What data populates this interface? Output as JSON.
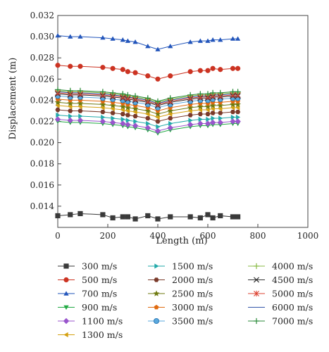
{
  "chart_data": {
    "type": "line",
    "xlabel": "Length (m)",
    "ylabel": "Displacement (m)",
    "xlim": [
      0,
      1000
    ],
    "ylim": [
      0.012,
      0.032
    ],
    "x_ticks": [
      "0",
      "200",
      "400",
      "600",
      "800",
      "1000"
    ],
    "y_ticks": [
      "0.014",
      "0.016",
      "0.018",
      "0.020",
      "0.022",
      "0.024",
      "0.026",
      "0.028",
      "0.030",
      "0.032"
    ],
    "grid": false,
    "legend_placement": "bottom",
    "x": [
      0,
      50,
      90,
      180,
      220,
      260,
      280,
      310,
      360,
      400,
      450,
      530,
      570,
      600,
      620,
      650,
      700,
      720
    ],
    "series": [
      {
        "name": "300 m/s",
        "marker": "square",
        "color": "#3a3a3a",
        "values": [
          0.0131,
          0.0132,
          0.0133,
          0.0132,
          0.0129,
          0.013,
          0.013,
          0.0128,
          0.0131,
          0.0128,
          0.013,
          0.013,
          0.0129,
          0.0132,
          0.0129,
          0.0131,
          0.013,
          0.013
        ]
      },
      {
        "name": "500 m/s",
        "marker": "circle",
        "color": "#cc3322",
        "values": [
          0.0273,
          0.0272,
          0.0272,
          0.0271,
          0.027,
          0.0269,
          0.0267,
          0.0266,
          0.0263,
          0.026,
          0.0263,
          0.0267,
          0.0268,
          0.0268,
          0.027,
          0.0269,
          0.027,
          0.027
        ]
      },
      {
        "name": "700 m/s",
        "marker": "triangle-up",
        "color": "#2255bb",
        "values": [
          0.0301,
          0.03,
          0.03,
          0.0299,
          0.0298,
          0.0297,
          0.0296,
          0.0295,
          0.0291,
          0.0288,
          0.0291,
          0.0295,
          0.0296,
          0.0296,
          0.0297,
          0.0297,
          0.0298,
          0.0298
        ]
      },
      {
        "name": "900 m/s",
        "marker": "triangle-down",
        "color": "#22aa44",
        "values": [
          0.022,
          0.0219,
          0.0219,
          0.0218,
          0.0217,
          0.0216,
          0.0215,
          0.0214,
          0.0212,
          0.0209,
          0.0212,
          0.0215,
          0.0216,
          0.0216,
          0.0217,
          0.0217,
          0.0218,
          0.0218
        ]
      },
      {
        "name": "1100 m/s",
        "marker": "diamond",
        "color": "#9955cc",
        "values": [
          0.0222,
          0.0221,
          0.0221,
          0.022,
          0.0219,
          0.0218,
          0.0217,
          0.0216,
          0.0214,
          0.0211,
          0.0214,
          0.0217,
          0.0218,
          0.0218,
          0.0219,
          0.0219,
          0.022,
          0.022
        ]
      },
      {
        "name": "1300 m/s",
        "marker": "triangle-left",
        "color": "#d4a010",
        "values": [
          0.0235,
          0.0234,
          0.0234,
          0.0233,
          0.0232,
          0.0231,
          0.023,
          0.0229,
          0.0227,
          0.0224,
          0.0227,
          0.023,
          0.0231,
          0.0231,
          0.0232,
          0.0232,
          0.0233,
          0.0233
        ]
      },
      {
        "name": "1500 m/s",
        "marker": "triangle-right",
        "color": "#22aaaa",
        "values": [
          0.0226,
          0.0225,
          0.0225,
          0.0224,
          0.0223,
          0.0222,
          0.0221,
          0.022,
          0.0218,
          0.0215,
          0.0218,
          0.0221,
          0.0222,
          0.0222,
          0.0223,
          0.0223,
          0.0224,
          0.0224
        ]
      },
      {
        "name": "2000 m/s",
        "marker": "hexagon",
        "color": "#7a3a2a",
        "values": [
          0.0231,
          0.023,
          0.023,
          0.0229,
          0.0228,
          0.0227,
          0.0226,
          0.0225,
          0.0223,
          0.022,
          0.0223,
          0.0226,
          0.0227,
          0.0227,
          0.0228,
          0.0228,
          0.0229,
          0.0229
        ]
      },
      {
        "name": "2500 m/s",
        "marker": "star",
        "color": "#6f7a10",
        "values": [
          0.0238,
          0.0237,
          0.0237,
          0.0236,
          0.0235,
          0.0234,
          0.0233,
          0.0232,
          0.023,
          0.0227,
          0.023,
          0.0233,
          0.0234,
          0.0234,
          0.0235,
          0.0235,
          0.0236,
          0.0236
        ]
      },
      {
        "name": "3000 m/s",
        "marker": "pentagon",
        "color": "#e06b10",
        "values": [
          0.0241,
          0.024,
          0.024,
          0.0239,
          0.0238,
          0.0237,
          0.0236,
          0.0235,
          0.0233,
          0.023,
          0.0233,
          0.0236,
          0.0237,
          0.0237,
          0.0238,
          0.0238,
          0.0239,
          0.0239
        ]
      },
      {
        "name": "3500 m/s",
        "marker": "circle-dot",
        "color": "#5aa8dd",
        "values": [
          0.0244,
          0.0243,
          0.0243,
          0.0242,
          0.0241,
          0.024,
          0.0239,
          0.0238,
          0.0236,
          0.0233,
          0.0236,
          0.0239,
          0.024,
          0.024,
          0.0241,
          0.0241,
          0.0242,
          0.0242
        ]
      },
      {
        "name": "4000 m/s",
        "marker": "plus",
        "color": "#88bb44",
        "values": [
          0.0249,
          0.0248,
          0.0248,
          0.0247,
          0.0246,
          0.0245,
          0.0244,
          0.0243,
          0.0241,
          0.0238,
          0.0241,
          0.0244,
          0.0245,
          0.0245,
          0.0246,
          0.0246,
          0.0247,
          0.0247
        ]
      },
      {
        "name": "4500 m/s",
        "marker": "x",
        "color": "#333333",
        "values": [
          0.0246,
          0.0245,
          0.0245,
          0.0244,
          0.0243,
          0.0242,
          0.0241,
          0.024,
          0.0238,
          0.0235,
          0.0238,
          0.0241,
          0.0242,
          0.0242,
          0.0243,
          0.0243,
          0.0244,
          0.0244
        ]
      },
      {
        "name": "5000 m/s",
        "marker": "asterisk",
        "color": "#dd4433",
        "values": [
          0.0247,
          0.0246,
          0.0246,
          0.0245,
          0.0244,
          0.0243,
          0.0242,
          0.0241,
          0.0239,
          0.0236,
          0.0239,
          0.0242,
          0.0243,
          0.0243,
          0.0244,
          0.0244,
          0.0245,
          0.0245
        ]
      },
      {
        "name": "6000 m/s",
        "marker": "line",
        "color": "#3355aa",
        "values": [
          0.0248,
          0.0247,
          0.0247,
          0.0246,
          0.0245,
          0.0244,
          0.0243,
          0.0242,
          0.024,
          0.0237,
          0.024,
          0.0243,
          0.0244,
          0.0244,
          0.0245,
          0.0245,
          0.0246,
          0.0246
        ]
      },
      {
        "name": "7000 m/s",
        "marker": "plus",
        "color": "#2a8a3a",
        "values": [
          0.025,
          0.0249,
          0.0249,
          0.0248,
          0.0247,
          0.0246,
          0.0245,
          0.0244,
          0.0242,
          0.0239,
          0.0242,
          0.0245,
          0.0246,
          0.0246,
          0.0247,
          0.0247,
          0.0248,
          0.0248
        ]
      }
    ],
    "legend_columns": [
      [
        "300 m/s",
        "500 m/s",
        "700 m/s",
        "900 m/s",
        "1100 m/s",
        "1300 m/s"
      ],
      [
        "1500 m/s",
        "2000 m/s",
        "2500 m/s",
        "3000 m/s",
        "3500 m/s"
      ],
      [
        "4000 m/s",
        "4500 m/s",
        "5000 m/s",
        "6000 m/s",
        "7000 m/s"
      ]
    ]
  }
}
